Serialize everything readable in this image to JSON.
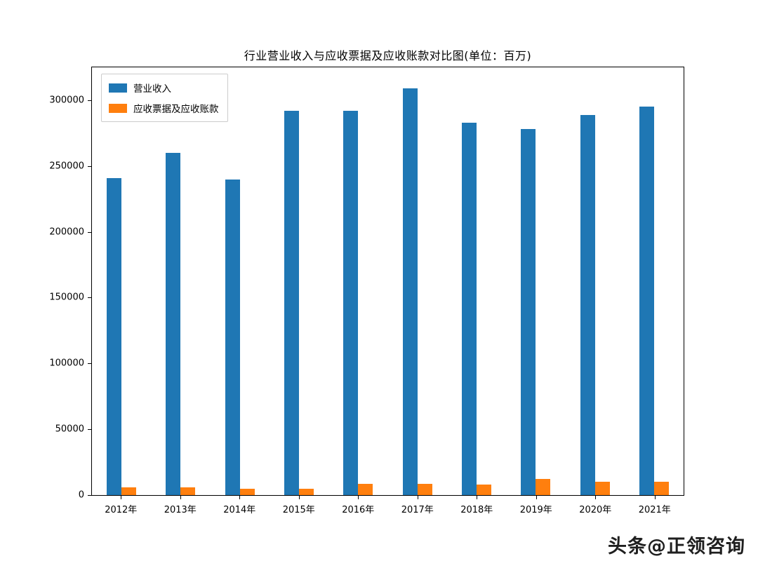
{
  "title": "行业营业收入与应收票据及应收账款对比图(单位：百万)",
  "watermark": "头条@正领咨询",
  "chart_data": {
    "type": "bar",
    "title": "行业营业收入与应收票据及应收账款对比图(单位：百万)",
    "xlabel": "",
    "ylabel": "",
    "categories": [
      "2012年",
      "2013年",
      "2014年",
      "2015年",
      "2016年",
      "2017年",
      "2018年",
      "2019年",
      "2020年",
      "2021年"
    ],
    "series": [
      {
        "name": "营业收入",
        "color": "#1f77b4",
        "values": [
          241000,
          260000,
          240000,
          292000,
          292000,
          309000,
          283000,
          278000,
          289000,
          295000
        ]
      },
      {
        "name": "应收票据及应收账款",
        "color": "#ff7f0e",
        "values": [
          6000,
          6000,
          5000,
          5000,
          8500,
          8500,
          8000,
          12000,
          10000,
          10000
        ]
      }
    ],
    "yticks": [
      0,
      50000,
      100000,
      150000,
      200000,
      250000,
      300000
    ],
    "ylim": [
      0,
      325000
    ],
    "grid": false,
    "legend_position": "upper left"
  }
}
